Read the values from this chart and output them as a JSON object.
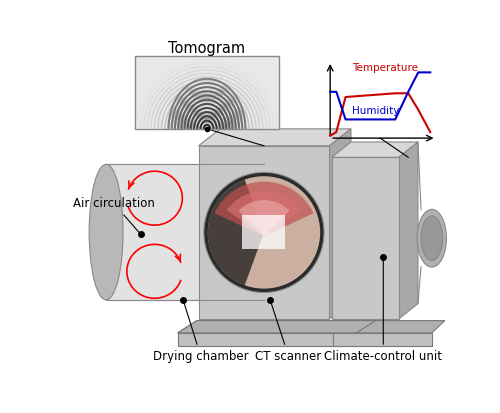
{
  "bg_color": "#ffffff",
  "temp_color": "#cc0000",
  "humid_color": "#0000cc",
  "temp_label": "Temperature",
  "humid_label": "Humidity",
  "tomogram_label": "Tomogram",
  "labels": [
    "Drying chamber",
    "CT scanner",
    "Climate-control unit"
  ],
  "air_label": "Air circulation",
  "lc": "#c8c8c8",
  "mc": "#a8a8a8",
  "dc": "#888888",
  "ddc": "#686868",
  "tc": "#d8d8d8"
}
